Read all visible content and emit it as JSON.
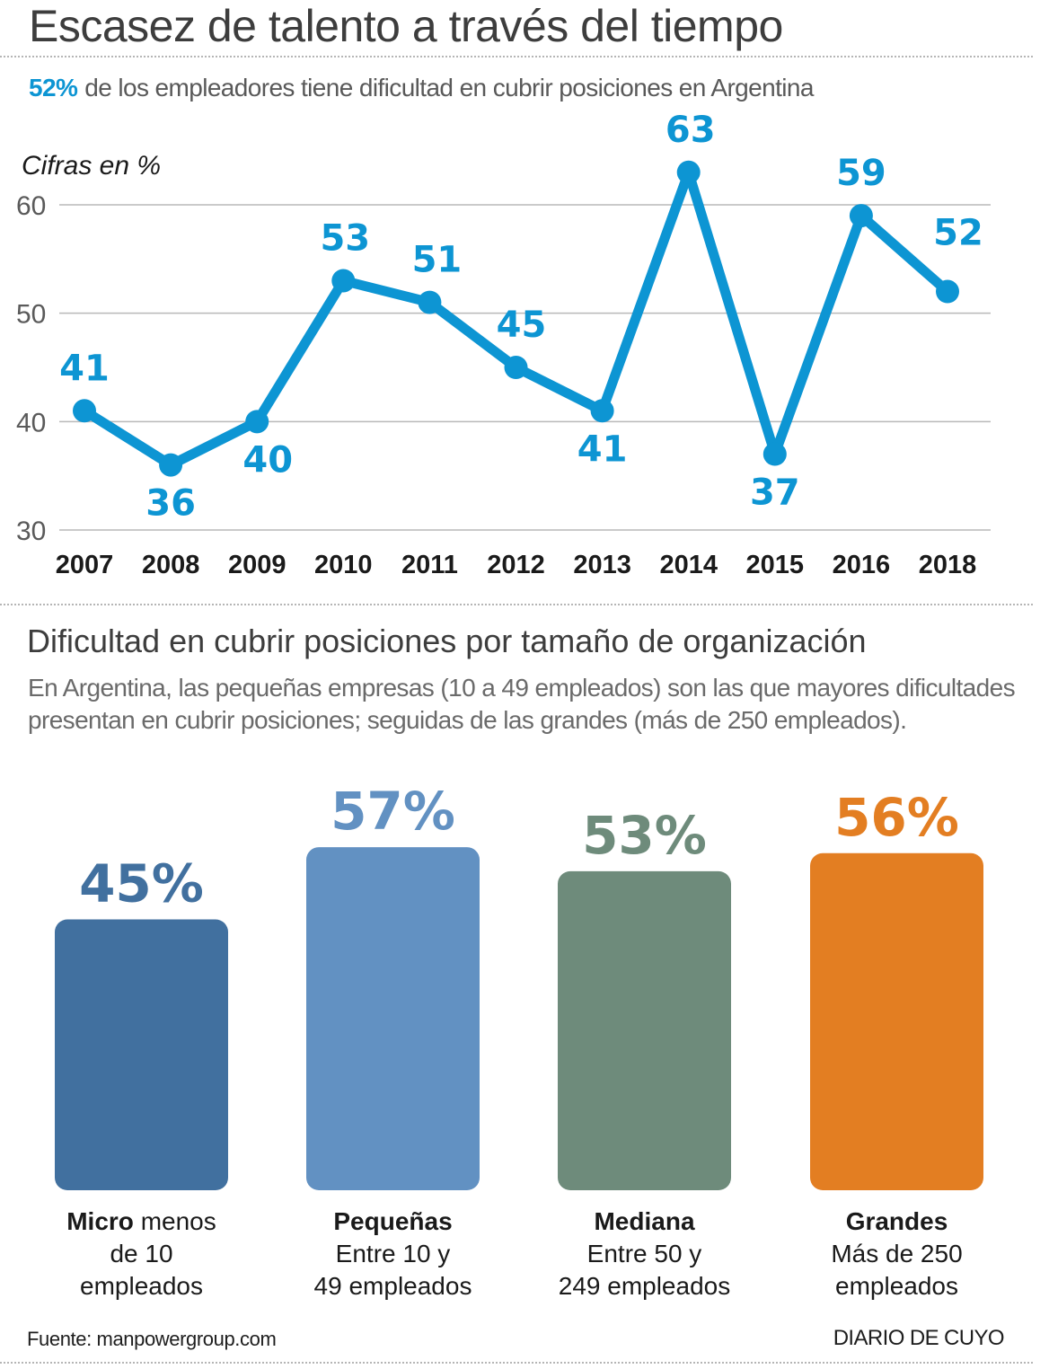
{
  "header": {
    "title": "Escasez de talento a través del tiempo",
    "highlight": "52%",
    "subtitle": "de los empleadores tiene dificultad en cubrir posiciones en Argentina"
  },
  "section2": {
    "title": "Dificultad en cubrir posiciones por tamaño de organización",
    "description": "En Argentina, las pequeñas empresas (10 a 49 empleados) son las que mayores dificultades presentan en cubrir posiciones; seguidas de las grandes (más de 250 empleados)."
  },
  "footer": {
    "source": "Fuente: manpowergroup.com",
    "brand": "DIARIO DE CUYO"
  },
  "colors": {
    "line": "#0d95d3",
    "grid": "#b9b9b9",
    "tick": "#5a5a5a",
    "year": "#1a1a1a"
  },
  "chart_data": [
    {
      "type": "line",
      "title": "Escasez de talento a través del tiempo",
      "ylabel": "Cifras en %",
      "xlabel": "",
      "x": [
        "2007",
        "2008",
        "2009",
        "2010",
        "2011",
        "2012",
        "2013",
        "2014",
        "2015",
        "2016",
        "2018"
      ],
      "series": [
        {
          "name": "Escasez de talento",
          "values": [
            41,
            36,
            40,
            53,
            51,
            45,
            41,
            63,
            37,
            59,
            52
          ]
        }
      ],
      "data_labels": [
        "41",
        "36",
        "40",
        "53",
        "51",
        "45",
        "41",
        "63",
        "37",
        "59",
        "52"
      ],
      "yticks": [
        30,
        40,
        50,
        60
      ],
      "ylim": [
        30,
        60
      ],
      "grid": true,
      "legend": "none"
    },
    {
      "type": "bar",
      "title": "Dificultad en cubrir posiciones por tamaño de organización",
      "categories": [
        "Micro",
        "Pequeñas",
        "Mediana",
        "Grandes"
      ],
      "category_descriptions": [
        "menos de 10 empleados",
        "Entre 10 y 49 empleados",
        "Entre 50 y 249 empleados",
        "Más de 250 empleados"
      ],
      "values": [
        45,
        57,
        53,
        56
      ],
      "data_labels": [
        "45%",
        "57%",
        "53%",
        "56%"
      ],
      "colors": [
        "#41709f",
        "#6291c2",
        "#6e8b7b",
        "#e37e22"
      ],
      "unit": "%",
      "grid": false,
      "legend": "none"
    }
  ],
  "bar_labels": [
    {
      "bold": "Micro",
      "line1": " menos",
      "line2": "de 10",
      "line3": "empleados"
    },
    {
      "bold": "Pequeñas",
      "line1": "",
      "line2": "Entre 10 y",
      "line3": "49 empleados"
    },
    {
      "bold": "Mediana",
      "line1": "",
      "line2": "Entre 50 y",
      "line3": "249 empleados"
    },
    {
      "bold": "Grandes",
      "line1": "",
      "line2": "Más de 250",
      "line3": "empleados"
    }
  ]
}
